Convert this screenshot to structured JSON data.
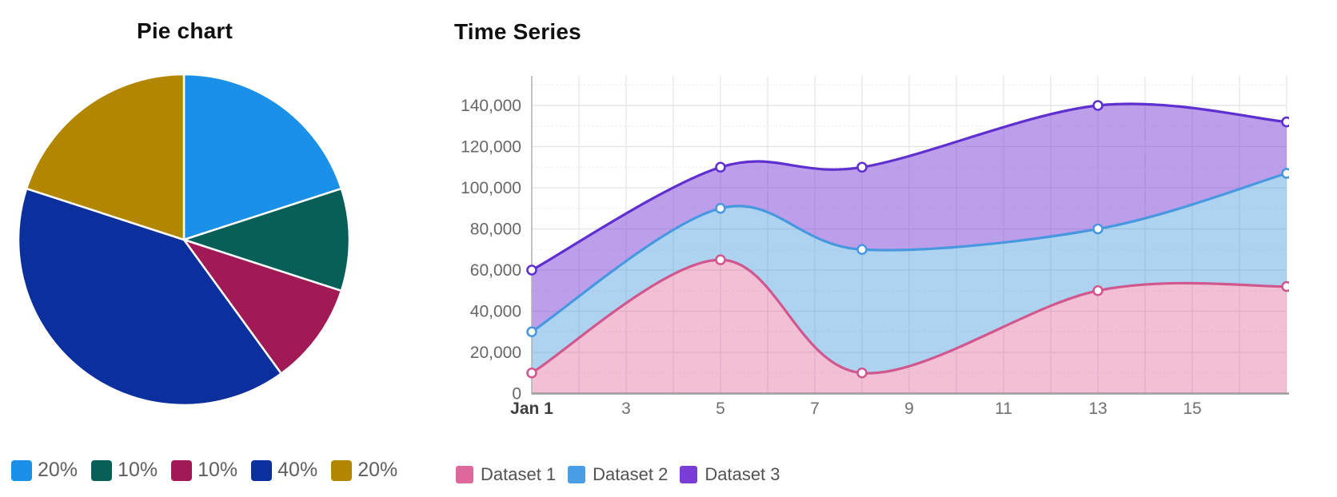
{
  "page": {
    "background": "#ffffff"
  },
  "chart_data": [
    {
      "type": "pie",
      "title": "Pie chart",
      "labels": [
        "20%",
        "10%",
        "10%",
        "40%",
        "20%"
      ],
      "values": [
        20,
        10,
        10,
        40,
        20
      ],
      "colors": [
        "#1a90e8",
        "#085f58",
        "#a11a55",
        "#0c2f9e",
        "#b38600"
      ],
      "start_angle_deg": -90,
      "direction": "clockwise",
      "slice_border_color": "#ffffff",
      "legend_position": "bottom"
    },
    {
      "type": "area",
      "title": "Time Series",
      "x": [
        1,
        5,
        8,
        13,
        17
      ],
      "x_axis": {
        "range": [
          1,
          17
        ],
        "tick_values": [
          1,
          3,
          5,
          7,
          9,
          11,
          13,
          15
        ],
        "tick_labels": [
          "Jan 1",
          "3",
          "5",
          "7",
          "9",
          "11",
          "13",
          "15"
        ],
        "first_tick_bold": true
      },
      "y_axis": {
        "range": [
          0,
          154000
        ],
        "tick_step": 20000,
        "tick_values": [
          0,
          20000,
          40000,
          60000,
          80000,
          100000,
          120000,
          140000
        ],
        "tick_labels": [
          "0",
          "20,000",
          "40,000",
          "60,000",
          "80,000",
          "100,000",
          "120,000",
          "140,000"
        ],
        "minor_gridline_step": 10000
      },
      "grid": true,
      "fill_mode": "between-series",
      "series": [
        {
          "name": "Dataset 1",
          "values": [
            10000,
            65000,
            10000,
            50000,
            52000
          ],
          "line_color": "#d0588f",
          "fill_rgba": "rgba(224,103,155,0.42)",
          "legend_color": "#e0679b"
        },
        {
          "name": "Dataset 2",
          "values": [
            30000,
            90000,
            70000,
            80000,
            107000
          ],
          "line_color": "#4898e0",
          "fill_rgba": "rgba(74,157,224,0.45)",
          "legend_color": "#4a9ee4"
        },
        {
          "name": "Dataset 3",
          "values": [
            60000,
            110000,
            110000,
            140000,
            132000
          ],
          "line_color": "#5f30cf",
          "fill_rgba": "rgba(122,62,214,0.5)",
          "legend_color": "#7a3ed6"
        }
      ],
      "legend_position": "bottom"
    }
  ]
}
